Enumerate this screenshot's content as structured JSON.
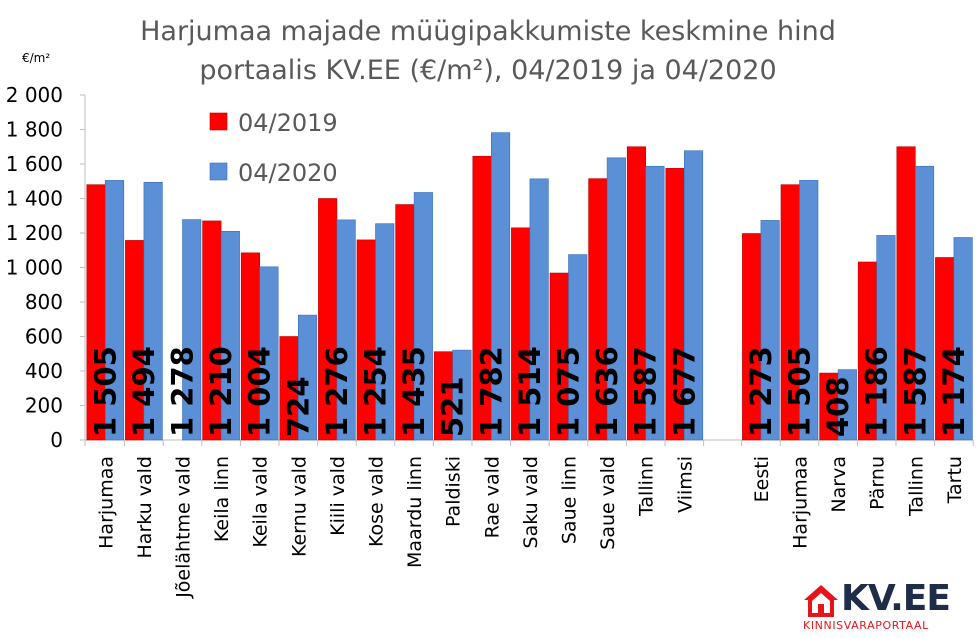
{
  "chart_data": {
    "type": "bar",
    "title": "Harjumaa majade müügipakkumiste keskmine hind portaalis KV.EE (€/m²), 04/2019 ja 04/2020",
    "title_lines": [
      "Harjumaa majade müügipakkumiste keskmine hind",
      "portaalis KV.EE (€/m²), 04/2019 ja 04/2020"
    ],
    "unit_label": "€/m²",
    "ylim": [
      0,
      2000
    ],
    "yticks": [
      0,
      200,
      400,
      600,
      800,
      1000,
      1200,
      1400,
      1600,
      1800,
      2000
    ],
    "ytick_labels": [
      "0",
      "200",
      "400",
      "600",
      "800",
      "1 000",
      "1 200",
      "1 400",
      "1 600",
      "1 800",
      "2 000"
    ],
    "grid": false,
    "legend_position": "top-left",
    "categories": [
      "Harjumaa",
      "Harku vald",
      "Jõelähtme vald",
      "Keila linn",
      "Keila vald",
      "Kernu vald",
      "Kiili vald",
      "Kose vald",
      "Maardu linn",
      "Paldiski",
      "Rae vald",
      "Saku vald",
      "Saue linn",
      "Saue vald",
      "Tallinn",
      "Viimsi",
      "Eesti",
      "Harjumaa",
      "Narva",
      "Pärnu",
      "Tallinn",
      "Tartu"
    ],
    "gap_after_index": 15,
    "series": [
      {
        "name": "04/2019",
        "color": "#ff0000",
        "values": [
          1480,
          1157,
          null,
          1270,
          1085,
          600,
          1400,
          1160,
          1365,
          512,
          1645,
          1230,
          968,
          1515,
          1700,
          1575,
          1197,
          1480,
          388,
          1032,
          1700,
          1058
        ]
      },
      {
        "name": "04/2020",
        "color": "#5b8fd6",
        "values": [
          1505,
          1494,
          1278,
          1210,
          1004,
          724,
          1276,
          1254,
          1435,
          521,
          1782,
          1514,
          1075,
          1636,
          1587,
          1677,
          1273,
          1505,
          408,
          1186,
          1587,
          1174
        ]
      }
    ],
    "data_labels": [
      "1 505",
      "1 494",
      "1 278",
      "1 210",
      "1 004",
      "724",
      "1 276",
      "1 254",
      "1 435",
      "521",
      "1 782",
      "1 514",
      "1 075",
      "1 636",
      "1 587",
      "1 677",
      "1 273",
      "1 505",
      "408",
      "1 186",
      "1 587",
      "1 174"
    ]
  },
  "logo": {
    "brand": "KV.EE",
    "tagline": "KINNISVARAPORTAAL",
    "mark_icon": "house-icon",
    "colors": {
      "red": "#e8141b",
      "navy": "#1f2d4a"
    }
  }
}
